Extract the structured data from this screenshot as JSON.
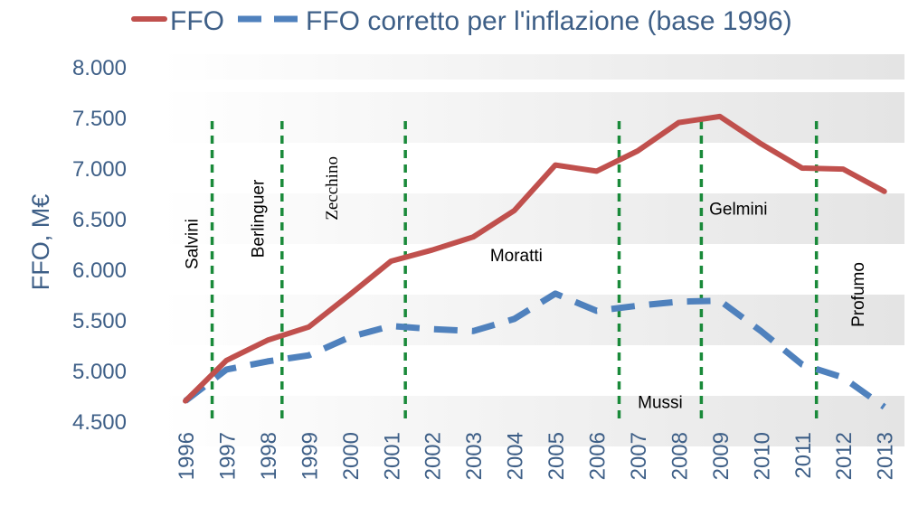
{
  "chart_data": {
    "type": "line",
    "ylabel": "FFO, M€",
    "ylim": [
      4500,
      8000
    ],
    "yticks": [
      4500,
      5000,
      5500,
      6000,
      6500,
      7000,
      7500,
      8000
    ],
    "ytick_labels": [
      "4.500",
      "5.000",
      "5.500",
      "6.000",
      "6.500",
      "7.000",
      "7.500",
      "8.000"
    ],
    "x": [
      "1996",
      "1997",
      "1998",
      "1999",
      "2000",
      "2001",
      "2002",
      "2003",
      "2004",
      "2005",
      "2006",
      "2007",
      "2008",
      "2009",
      "2010",
      "2011",
      "2012",
      "2013"
    ],
    "grid": "alternating horizontal bands",
    "legend_position": "top",
    "series": [
      {
        "name": "FFO",
        "style": "solid",
        "color": "#c0504d",
        "values": [
          4700,
          5100,
          5300,
          5430,
          5750,
          6080,
          6190,
          6320,
          6580,
          7030,
          6970,
          7170,
          7450,
          7510,
          7240,
          7000,
          6990,
          6770
        ]
      },
      {
        "name": "FFO corretto per l'inflazione (base 1996)",
        "style": "dashed",
        "color": "#4f81bd",
        "values": [
          4700,
          5010,
          5090,
          5150,
          5330,
          5440,
          5410,
          5390,
          5510,
          5760,
          5590,
          5640,
          5680,
          5690,
          5390,
          5060,
          4930,
          4640
        ]
      }
    ],
    "period_markers": {
      "color": "#1a8a3a",
      "boundaries": [
        1996.65,
        1998.35,
        2001.35,
        2006.55,
        2008.55,
        2011.35
      ]
    },
    "annotations": [
      {
        "label": "Salvini",
        "x": 1996.3,
        "y": 6250,
        "orientation": "vertical"
      },
      {
        "label": "Berlinguer",
        "x": 1997.9,
        "y": 6500,
        "orientation": "vertical"
      },
      {
        "label": "Zecchino",
        "x": 1999.7,
        "y": 6800,
        "orientation": "vertical",
        "font": "serif"
      },
      {
        "label": "Moratti",
        "x": 2004.05,
        "y": 6080,
        "orientation": "horizontal"
      },
      {
        "label": "Gelmini",
        "x": 2009.45,
        "y": 6540,
        "orientation": "horizontal"
      },
      {
        "label": "Mussi",
        "x": 2007.55,
        "y": 4630,
        "orientation": "horizontal"
      },
      {
        "label": "Profumo",
        "x": 2012.5,
        "y": 5750,
        "orientation": "vertical"
      }
    ]
  }
}
